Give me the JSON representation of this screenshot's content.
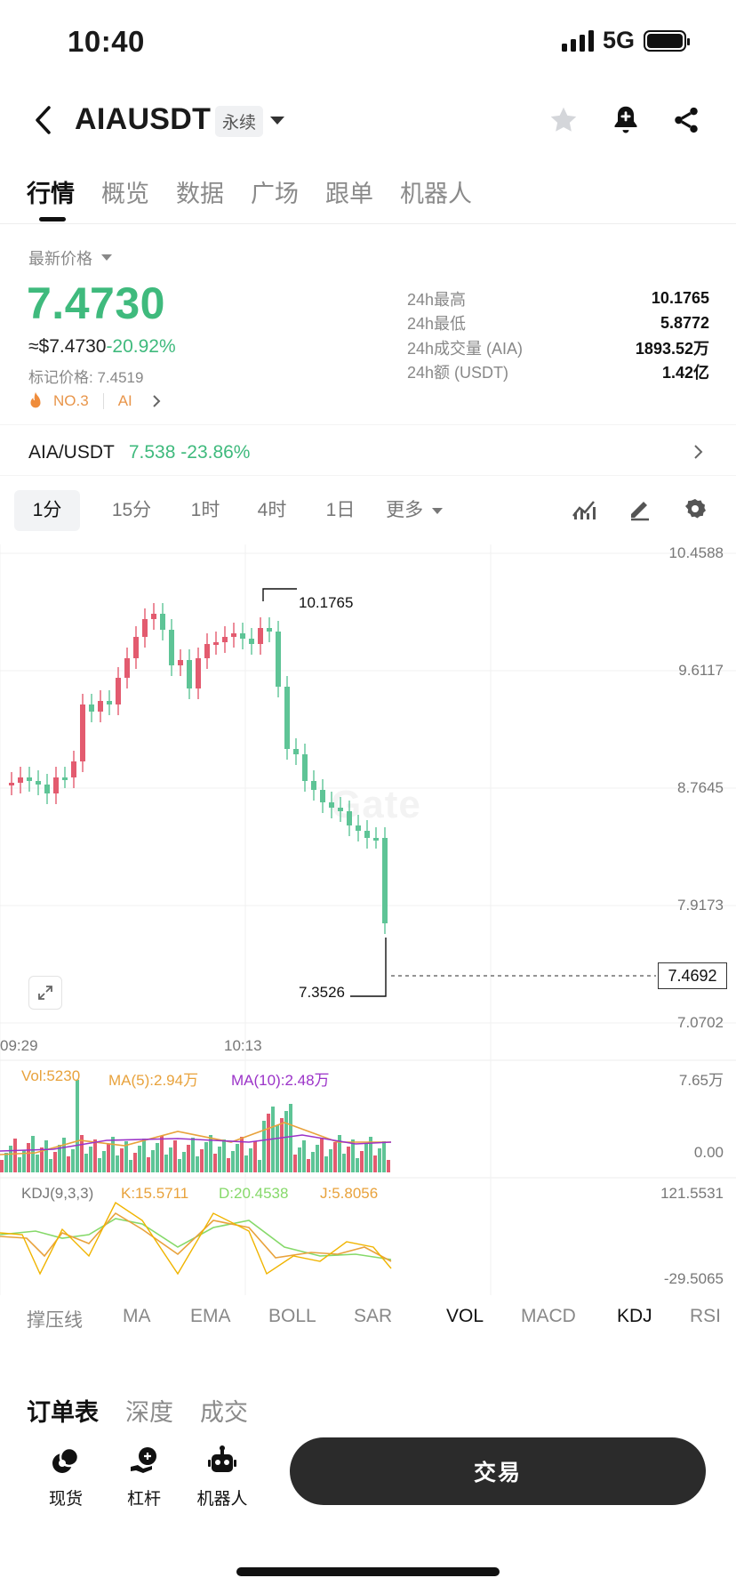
{
  "status_bar": {
    "time": "10:40",
    "network": "5G"
  },
  "header": {
    "pair": "AIAUSDT",
    "badge": "永续"
  },
  "tabs": [
    {
      "label": "行情"
    },
    {
      "label": "概览"
    },
    {
      "label": "数据"
    },
    {
      "label": "广场"
    },
    {
      "label": "跟单"
    },
    {
      "label": "机器人"
    }
  ],
  "ticker": {
    "latest_label": "最新价格",
    "price": "7.4730",
    "usd_price": "≈$7.4730",
    "change": "-20.92%",
    "mark_price": "标记价格: 7.4519",
    "rank": "NO.3",
    "tag": "AI"
  },
  "stats": [
    {
      "key": "24h最高",
      "value": "10.1765"
    },
    {
      "key": "24h最低",
      "value": "5.8772"
    },
    {
      "key": "24h成交量 (AIA)",
      "value": "1893.52万"
    },
    {
      "key": "24h额 (USDT)",
      "value": "1.42亿"
    }
  ],
  "spot": {
    "pair": "AIA/USDT",
    "price": "7.538",
    "change": "-23.86%"
  },
  "intervals": [
    {
      "label": "1分"
    },
    {
      "label": "15分"
    },
    {
      "label": "1时"
    },
    {
      "label": "4时"
    },
    {
      "label": "1日"
    },
    {
      "label": "更多"
    }
  ],
  "chart_data": {
    "type": "candlestick",
    "y_ticks": [
      "10.4588",
      "9.6117",
      "8.7645",
      "7.9173",
      "7.0702"
    ],
    "x_ticks": [
      "09:29",
      "10:13"
    ],
    "ylim": [
      7.0702,
      10.4588
    ],
    "high_marker": "10.1765",
    "low_marker": "7.3526",
    "current_price": "7.4692",
    "watermark": "Gate",
    "volume": {
      "vol_label": "Vol:5230",
      "ma5_label": "MA(5):2.94万",
      "ma10_label": "MA(10):2.48万",
      "y_ticks": [
        "7.65万",
        "0.00"
      ]
    },
    "kdj": {
      "label": "KDJ(9,3,3)",
      "k_label": "K:15.5711",
      "d_label": "D:20.4538",
      "j_label": "J:5.8056",
      "y_ticks": [
        "121.5531",
        "-29.5065"
      ]
    },
    "colors": {
      "up": "#e35b6f",
      "down": "#5ec496",
      "k": "#e8a23c",
      "d": "#86d96a",
      "j": "#f0b400",
      "ma10": "#9b33c8"
    }
  },
  "indicators": [
    {
      "label": "撑压线",
      "on": false
    },
    {
      "label": "MA",
      "on": false
    },
    {
      "label": "EMA",
      "on": false
    },
    {
      "label": "BOLL",
      "on": false
    },
    {
      "label": "SAR",
      "on": false
    },
    {
      "label": "VOL",
      "on": true
    },
    {
      "label": "MACD",
      "on": false
    },
    {
      "label": "KDJ",
      "on": true
    },
    {
      "label": "RSI",
      "on": false
    }
  ],
  "book_tabs": [
    {
      "label": "订单表"
    },
    {
      "label": "深度"
    },
    {
      "label": "成交"
    }
  ],
  "bottom_bar": {
    "items": [
      {
        "label": "现货"
      },
      {
        "label": "杠杆"
      },
      {
        "label": "机器人"
      }
    ],
    "trade_label": "交易"
  }
}
